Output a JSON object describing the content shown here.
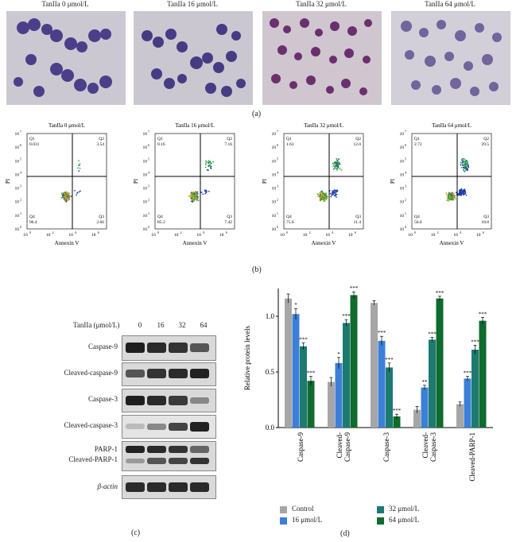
{
  "panel_a": {
    "titles": [
      "TanIIa 0 μmol/L",
      "TanIIa 16 μmol/L",
      "TanIIa 32 μmol/L",
      "TanIIa 64 μmol/L"
    ],
    "letter": "(a)"
  },
  "panel_b": {
    "letter": "(b)",
    "xlabel": "Annexin V",
    "ylabel": "PI",
    "plots": [
      {
        "title": "TanIIa 0 μmol/L",
        "q1": "Q1",
        "q1v": "0.031",
        "q2": "Q2",
        "q2v": "3.54",
        "q3": "Q3",
        "q3v": "2.66",
        "q4": "Q4",
        "q4v": "96.4"
      },
      {
        "title": "TanIIa 16 μmol/L",
        "q1": "Q1",
        "q1v": "0.16",
        "q2": "Q2",
        "q2v": "7.16",
        "q3": "Q3",
        "q3v": "7.42",
        "q4": "Q4",
        "q4v": "85.3"
      },
      {
        "title": "TanIIa 32 μmol/L",
        "q1": "Q1",
        "q1v": "1.61",
        "q2": "Q2",
        "q2v": "12.0",
        "q3": "Q3",
        "q3v": "11.4",
        "q4": "Q4",
        "q4v": "75.6"
      },
      {
        "title": "TanIIa 64 μmol/L",
        "q1": "Q1",
        "q1v": "2.72",
        "q2": "Q2",
        "q2v": "29.5",
        "q3": "Q3",
        "q3v": "18.8",
        "q4": "Q4",
        "q4v": "56.0"
      }
    ]
  },
  "panel_c": {
    "letter": "(c)",
    "header": "TanIIa (μmol/L)",
    "doses": [
      "0",
      "16",
      "32",
      "64"
    ],
    "rows": [
      "Caspase-9",
      "Cleaved-caspase-9",
      "Caspase-3",
      "Cleaved-caspase-3",
      "PARP-1",
      "Cleaved-PARP-1",
      "β-actin"
    ]
  },
  "panel_d": {
    "letter": "(d)",
    "legend": [
      "Control",
      "16 μmol/L",
      "32 μmol/L",
      "64 μmol/L"
    ]
  },
  "chart_data": {
    "type": "bar",
    "ylabel": "Relative protein levels",
    "ylim": [
      0,
      1.25
    ],
    "yticks": [
      "0.0",
      "0.5",
      "1.0"
    ],
    "categories": [
      "Caspase-9",
      "Cleaved-Caspase-9",
      "Caspase-3",
      "Cleaved-Caspase-3",
      "Cleaved-PARP-1"
    ],
    "category_lines": [
      [
        "Caspase-9"
      ],
      [
        "Cleaved-",
        "Caspase-9"
      ],
      [
        "Caspase-3"
      ],
      [
        "Cleaved-",
        "Caspase-3"
      ],
      [
        "Cleaved-PARP-1"
      ]
    ],
    "series": [
      {
        "name": "Control",
        "color": "#a6a6a6",
        "values": [
          1.16,
          0.41,
          1.12,
          0.16,
          0.21
        ],
        "errors": [
          0.04,
          0.04,
          0.02,
          0.03,
          0.02
        ],
        "sig": [
          "",
          "",
          "",
          "",
          ""
        ]
      },
      {
        "name": "16 μmol/L",
        "color": "#3d7fd6",
        "values": [
          1.02,
          0.58,
          0.78,
          0.36,
          0.44
        ],
        "errors": [
          0.05,
          0.05,
          0.04,
          0.02,
          0.02
        ],
        "sig": [
          "*",
          "*",
          "***",
          "**",
          "***"
        ]
      },
      {
        "name": "32 μmol/L",
        "color": "#1d7a70",
        "values": [
          0.73,
          0.94,
          0.54,
          0.79,
          0.7
        ],
        "errors": [
          0.03,
          0.03,
          0.04,
          0.02,
          0.04
        ],
        "sig": [
          "***",
          "***",
          "***",
          "***",
          "***"
        ]
      },
      {
        "name": "64 μmol/L",
        "color": "#0f6b2e",
        "values": [
          0.42,
          1.19,
          0.1,
          1.16,
          0.96
        ],
        "errors": [
          0.04,
          0.03,
          0.02,
          0.02,
          0.03
        ],
        "sig": [
          "***",
          "***",
          "***",
          "***",
          "***"
        ]
      }
    ]
  }
}
